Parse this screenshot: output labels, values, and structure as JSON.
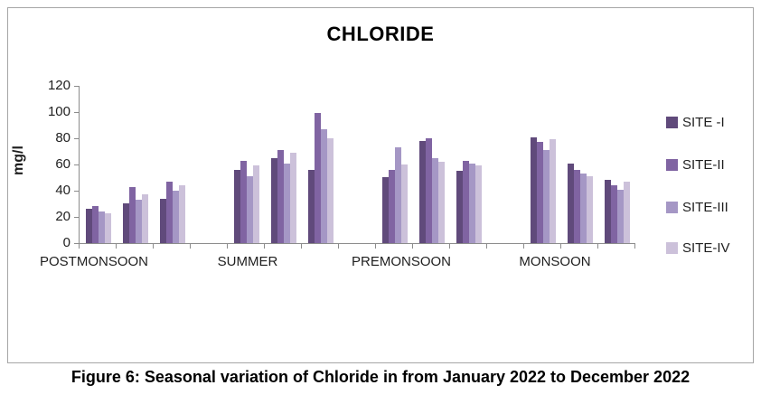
{
  "figure": {
    "title": "CHLORIDE",
    "caption": "Figure 6: Seasonal variation of Chloride in from January 2022 to December 2022"
  },
  "chart_data": {
    "type": "bar",
    "title": "CHLORIDE",
    "xlabel": "",
    "ylabel": "mg/l",
    "ylim": [
      0,
      120
    ],
    "yticks": [
      0,
      20,
      40,
      60,
      80,
      100,
      120
    ],
    "grid": false,
    "legend_position": "right",
    "sites": [
      {
        "label": "SITE -I",
        "color": "#604a7b"
      },
      {
        "label": "SITE-II",
        "color": "#8064a2"
      },
      {
        "label": "SITE-III",
        "color": "#a597c5"
      },
      {
        "label": "SITE-IV",
        "color": "#ccc1da"
      }
    ],
    "note": "Each season contains 3 month sub-groups; each sub-group lists values for SITE-I..SITE-IV in mg/l",
    "seasons": [
      {
        "label": "POSTMONSOON",
        "subgroups": [
          [
            26,
            28,
            24,
            23
          ],
          [
            30,
            43,
            33,
            37
          ],
          [
            34,
            47,
            40,
            44
          ]
        ]
      },
      {
        "label": "SUMMER",
        "subgroups": [
          [
            56,
            63,
            51,
            59
          ],
          [
            65,
            71,
            61,
            69
          ],
          [
            56,
            99,
            87,
            80
          ]
        ]
      },
      {
        "label": "PREMONSOON",
        "subgroups": [
          [
            50,
            56,
            73,
            60
          ],
          [
            78,
            80,
            65,
            62
          ],
          [
            55,
            63,
            61,
            59
          ]
        ]
      },
      {
        "label": "MONSOON",
        "subgroups": [
          [
            81,
            77,
            71,
            79
          ],
          [
            61,
            56,
            53,
            51
          ],
          [
            48,
            44,
            41,
            47
          ]
        ]
      }
    ]
  }
}
